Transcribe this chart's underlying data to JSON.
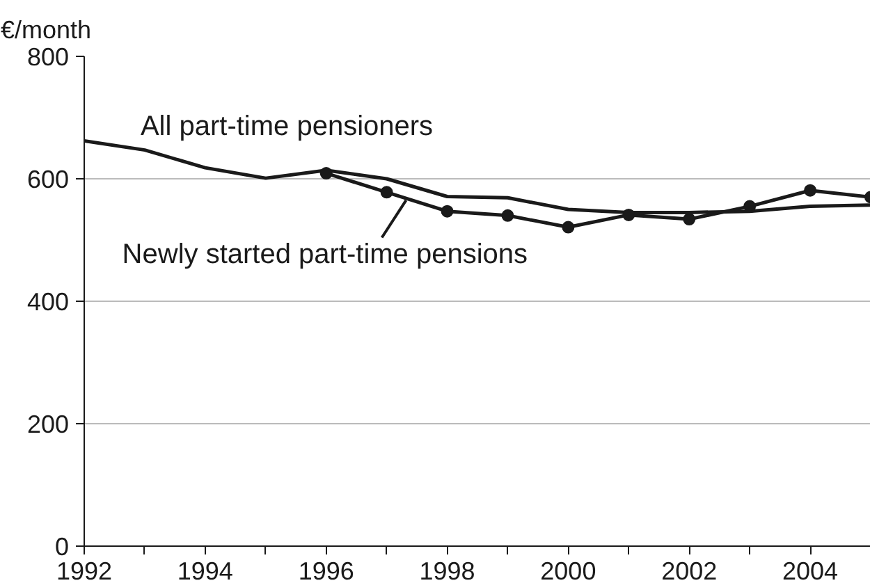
{
  "chart_data": {
    "type": "line",
    "ylabel": "€/month",
    "x": [
      1992,
      1993,
      1994,
      1995,
      1996,
      1997,
      1998,
      1999,
      2000,
      2001,
      2002,
      2003,
      2004,
      2005
    ],
    "series": [
      {
        "name": "All part-time pensioners",
        "color": "#1a1a1a",
        "marker": "none",
        "values": [
          662,
          647,
          618,
          601,
          614,
          600,
          571,
          569,
          550,
          545,
          545,
          547,
          555,
          557
        ]
      },
      {
        "name": "Newly started part-time pensions",
        "color": "#1a1a1a",
        "marker": "circle",
        "x": [
          1996,
          1997,
          1998,
          1999,
          2000,
          2001,
          2002,
          2003,
          2004,
          2005
        ],
        "values": [
          609,
          578,
          547,
          540,
          521,
          541,
          534,
          555,
          581,
          570
        ]
      }
    ],
    "xlim": [
      1992,
      2005
    ],
    "ylim": [
      0,
      800
    ],
    "xticks": [
      1992,
      {
        "value": 1993,
        "label": null
      },
      1994,
      {
        "value": 1995,
        "label": null
      },
      1996,
      {
        "value": 1997,
        "label": null
      },
      1998,
      {
        "value": 1999,
        "label": null
      },
      2000,
      {
        "value": 2001,
        "label": null
      },
      2002,
      {
        "value": 2003,
        "label": null
      },
      2004,
      {
        "value": 2005,
        "label": null
      }
    ],
    "yticks": [
      0,
      200,
      400,
      600,
      800
    ],
    "grid": "y"
  }
}
